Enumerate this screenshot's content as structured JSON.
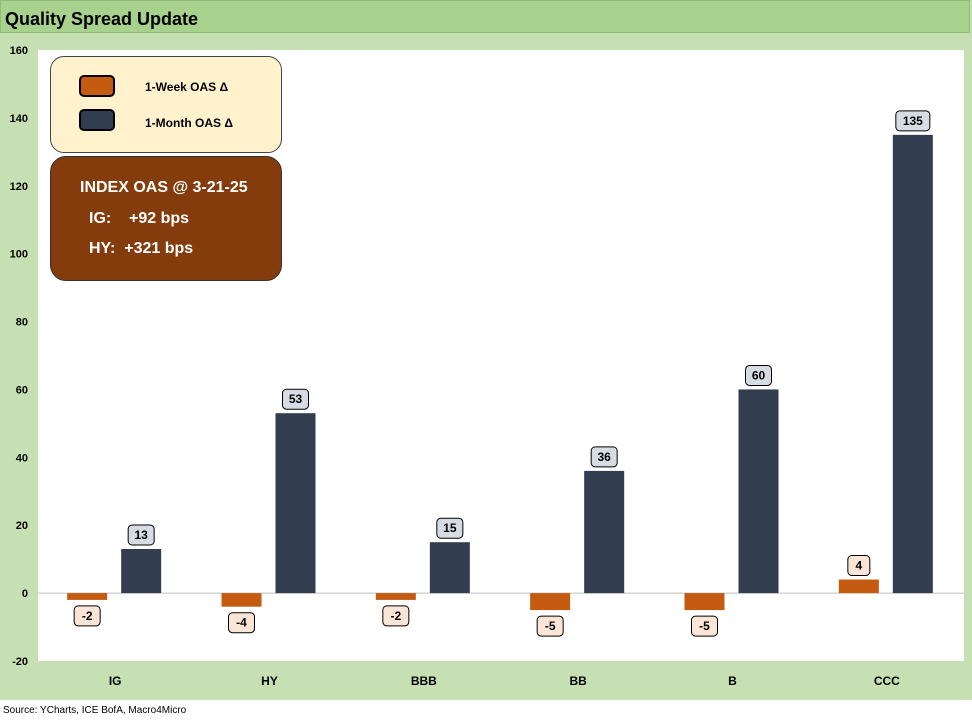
{
  "title": "Quality Spread Update",
  "source": "Source: YCharts, ICE BofA, Macro4Micro",
  "colors": {
    "week": "#c55a11",
    "month": "#323e4f",
    "week_label_bg": "#fbe5d6",
    "month_label_bg": "#d6dce4"
  },
  "legend": {
    "week_label": "1-Week OAS Δ",
    "month_label": "1-Month OAS Δ"
  },
  "index_box": {
    "title": "INDEX OAS @ 3-21-25",
    "ig_line": "IG:    +92 bps",
    "hy_line": "HY:  +321 bps"
  },
  "chart_data": {
    "type": "bar",
    "title": "Quality Spread Update",
    "categories": [
      "IG",
      "HY",
      "BBB",
      "BB",
      "B",
      "CCC"
    ],
    "series": [
      {
        "name": "1-Week OAS Δ",
        "values": [
          -2,
          -4,
          -2,
          -5,
          -5,
          4
        ]
      },
      {
        "name": "1-Month OAS Δ",
        "values": [
          13,
          53,
          15,
          36,
          60,
          135
        ]
      }
    ],
    "ylim": [
      -20,
      160
    ],
    "yticks": [
      -20,
      0,
      20,
      40,
      60,
      80,
      100,
      120,
      140,
      160
    ],
    "grid": false,
    "legend_position": "top-left"
  }
}
